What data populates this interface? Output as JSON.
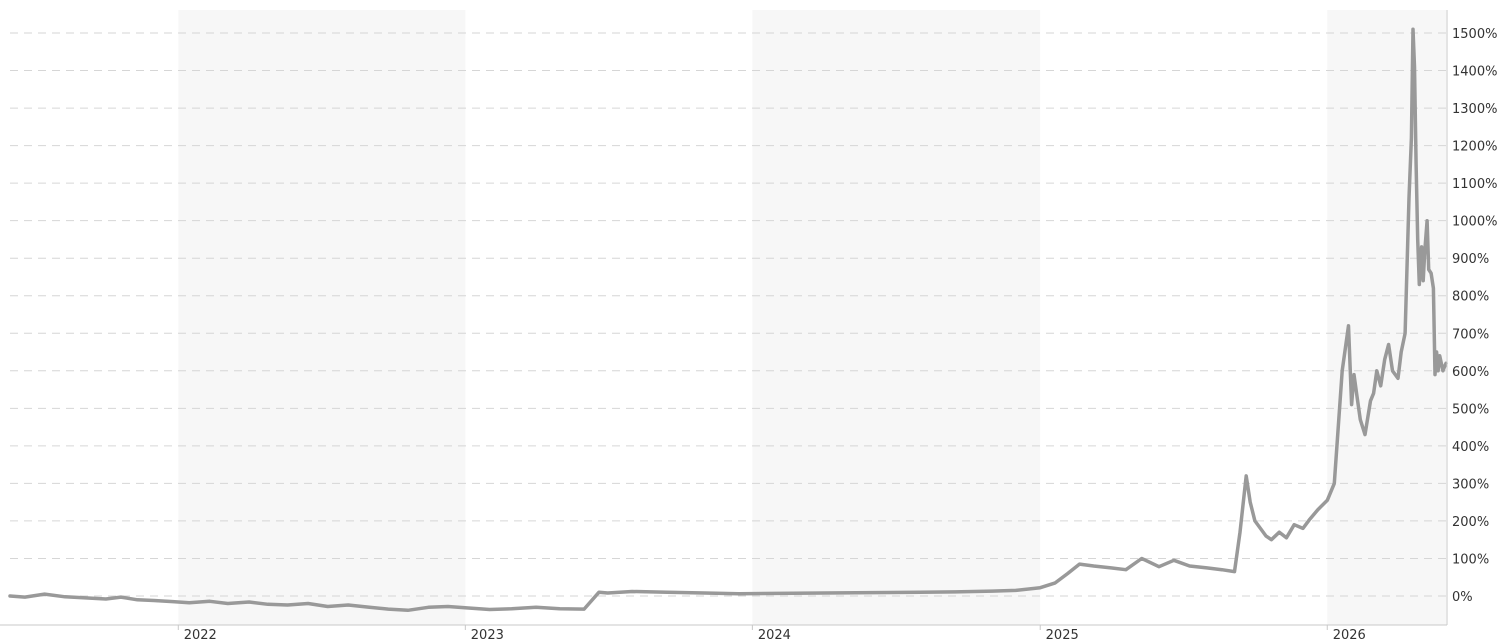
{
  "chart_data": {
    "type": "line",
    "title": "",
    "xlabel": "",
    "ylabel": "",
    "x_ticks": [
      "2022",
      "2023",
      "2024",
      "2025",
      "2026"
    ],
    "y_ticks": [
      "1500%",
      "1400%",
      "1300%",
      "1200%",
      "1100%",
      "1000%",
      "900%",
      "800%",
      "700%",
      "600%",
      "500%",
      "400%",
      "300%",
      "200%",
      "100%",
      "0%"
    ],
    "xlim": [
      "2021-06-01",
      "2026-06-01"
    ],
    "ylim": [
      -80,
      1550
    ],
    "grid": "horizontal dashed",
    "shaded_years": [
      "2022",
      "2024",
      "2026"
    ],
    "colors": {
      "line": "#999999",
      "grid": "#d6d6d6",
      "band": "#f7f7f7",
      "text": "#333333"
    },
    "series": [
      {
        "x": [
          "2021-06-01",
          "2021-06-20",
          "2021-07-15",
          "2021-08-10",
          "2021-09-05",
          "2021-10-01",
          "2021-10-20",
          "2021-11-10",
          "2021-12-01",
          "2021-12-25",
          "2022-01-15",
          "2022-02-10",
          "2022-03-05",
          "2022-04-01",
          "2022-04-25",
          "2022-05-20",
          "2022-06-15",
          "2022-07-10",
          "2022-08-05",
          "2022-09-01",
          "2022-09-25",
          "2022-10-20",
          "2022-11-15",
          "2022-12-10",
          "2023-01-05",
          "2023-02-01",
          "2023-03-01",
          "2023-04-01",
          "2023-05-01",
          "2023-06-01",
          "2023-06-20",
          "2023-07-01",
          "2023-08-01",
          "2023-09-15",
          "2023-11-01",
          "2023-12-15",
          "2024-02-01",
          "2024-04-01",
          "2024-06-01",
          "2024-08-01",
          "2024-09-15",
          "2024-11-01",
          "2024-12-01",
          "2025-01-01",
          "2025-01-20",
          "2025-02-05",
          "2025-02-20",
          "2025-03-10",
          "2025-04-01",
          "2025-04-20",
          "2025-05-10",
          "2025-06-01",
          "2025-06-20",
          "2025-07-10",
          "2025-08-01",
          "2025-08-20",
          "2025-09-05",
          "2025-09-12",
          "2025-09-20",
          "2025-09-25",
          "2025-10-01",
          "2025-10-08",
          "2025-10-15",
          "2025-10-22",
          "2025-11-01",
          "2025-11-10",
          "2025-11-20",
          "2025-12-01",
          "2025-12-10",
          "2025-12-20",
          "2026-01-01",
          "2026-01-10",
          "2026-01-20",
          "2026-01-28",
          "2026-02-01",
          "2026-02-04",
          "2026-02-08",
          "2026-02-12",
          "2026-02-18",
          "2026-02-25",
          "2026-03-01",
          "2026-03-05",
          "2026-03-10",
          "2026-03-15",
          "2026-03-20",
          "2026-03-25",
          "2026-04-01",
          "2026-04-05",
          "2026-04-10",
          "2026-04-15",
          "2026-04-18",
          "2026-04-20",
          "2026-04-22",
          "2026-04-24",
          "2026-04-26",
          "2026-04-28",
          "2026-05-01",
          "2026-05-03",
          "2026-05-05",
          "2026-05-08",
          "2026-05-10",
          "2026-05-13",
          "2026-05-16",
          "2026-05-18",
          "2026-05-20",
          "2026-05-22",
          "2026-05-24",
          "2026-05-26",
          "2026-05-28",
          "2026-05-30",
          "2026-06-01"
        ],
        "y": [
          0,
          -3,
          5,
          -2,
          -5,
          -8,
          -3,
          -10,
          -12,
          -15,
          -18,
          -14,
          -20,
          -16,
          -22,
          -24,
          -20,
          -28,
          -24,
          -30,
          -35,
          -38,
          -30,
          -28,
          -32,
          -36,
          -34,
          -30,
          -34,
          -35,
          10,
          8,
          12,
          10,
          8,
          6,
          7,
          8,
          9,
          10,
          11,
          13,
          15,
          22,
          35,
          60,
          85,
          80,
          75,
          70,
          100,
          78,
          95,
          80,
          75,
          70,
          65,
          170,
          320,
          250,
          200,
          180,
          160,
          150,
          170,
          155,
          190,
          180,
          205,
          230,
          255,
          300,
          600,
          720,
          510,
          590,
          530,
          470,
          430,
          520,
          540,
          600,
          560,
          630,
          670,
          600,
          580,
          650,
          700,
          1060,
          1220,
          1510,
          1410,
          1150,
          950,
          830,
          930,
          840,
          920,
          1000,
          870,
          860,
          820,
          590,
          650,
          600,
          640,
          620,
          600,
          610,
          620
        ]
      }
    ]
  }
}
